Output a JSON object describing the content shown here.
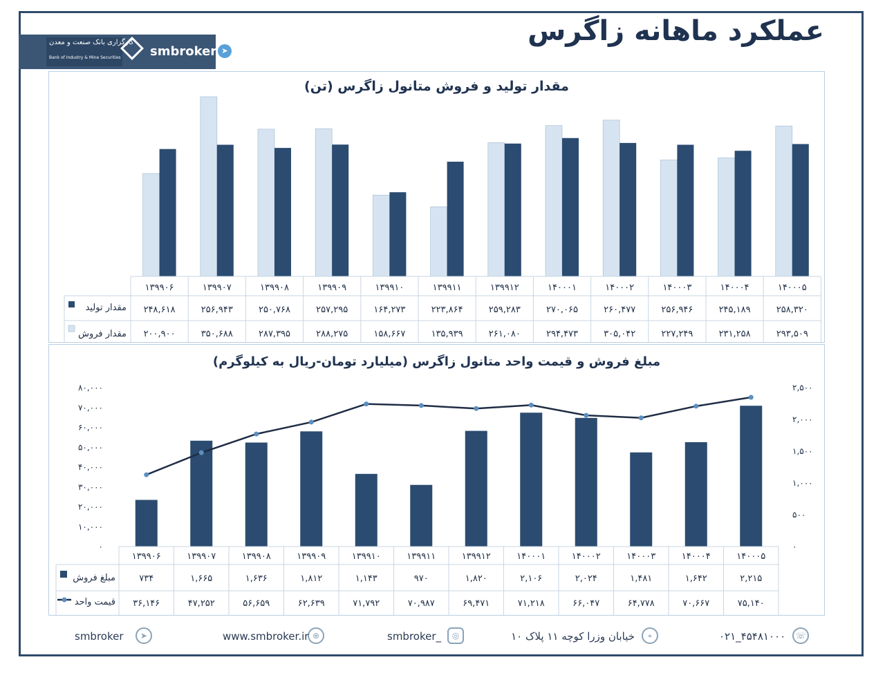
{
  "header": {
    "title": "عملکرد ماهانه زاگرس",
    "brand": "smbroker",
    "bank_name_fa": "کارگزاری بانک صنعت و معدن",
    "bank_name_en": "Bank of Industry & Mine Securities"
  },
  "chart_data": [
    {
      "type": "bar",
      "title": "مقدار تولید و فروش متانول زاگرس (تن)",
      "categories": [
        "۱۳۹۹۰۶",
        "۱۳۹۹۰۷",
        "۱۳۹۹۰۸",
        "۱۳۹۹۰۹",
        "۱۳۹۹۱۰",
        "۱۳۹۹۱۱",
        "۱۳۹۹۱۲",
        "۱۴۰۰۰۱",
        "۱۴۰۰۰۲",
        "۱۴۰۰۰۳",
        "۱۴۰۰۰۴",
        "۱۴۰۰۰۵"
      ],
      "series": [
        {
          "name": "مقدار تولید",
          "color": "#2b4b70",
          "values": [
            248618,
            256943,
            250768,
            257295,
            164273,
            223864,
            259283,
            270065,
            260477,
            256946,
            245189,
            258320
          ],
          "labels": [
            "۲۴۸,۶۱۸",
            "۲۵۶,۹۴۳",
            "۲۵۰,۷۶۸",
            "۲۵۷,۲۹۵",
            "۱۶۴,۲۷۳",
            "۲۲۳,۸۶۴",
            "۲۵۹,۲۸۳",
            "۲۷۰,۰۶۵",
            "۲۶۰,۴۷۷",
            "۲۵۶,۹۴۶",
            "۲۴۵,۱۸۹",
            "۲۵۸,۳۲۰"
          ]
        },
        {
          "name": "مقدار فروش",
          "color": "#d6e4f1",
          "values": [
            200900,
            350688,
            287395,
            288275,
            158667,
            135939,
            261080,
            294473,
            305042,
            227249,
            231258,
            293509
          ],
          "labels": [
            "۲۰۰,۹۰۰",
            "۳۵۰,۶۸۸",
            "۲۸۷,۳۹۵",
            "۲۸۸,۲۷۵",
            "۱۵۸,۶۶۷",
            "۱۳۵,۹۳۹",
            "۲۶۱,۰۸۰",
            "۲۹۴,۴۷۳",
            "۳۰۵,۰۴۲",
            "۲۲۷,۲۴۹",
            "۲۳۱,۲۵۸",
            "۲۹۳,۵۰۹"
          ]
        }
      ],
      "ylim": [
        0,
        350688
      ],
      "grid": false,
      "legend": "data-table"
    },
    {
      "type": "bar",
      "title": "مبلغ فروش و قیمت واحد متانول زاگرس (میلیارد تومان-ریال به کیلوگرم)",
      "categories": [
        "۱۳۹۹۰۶",
        "۱۳۹۹۰۷",
        "۱۳۹۹۰۸",
        "۱۳۹۹۰۹",
        "۱۳۹۹۱۰",
        "۱۳۹۹۱۱",
        "۱۳۹۹۱۲",
        "۱۴۰۰۰۱",
        "۱۴۰۰۰۲",
        "۱۴۰۰۰۳",
        "۱۴۰۰۰۴",
        "۱۴۰۰۰۵"
      ],
      "series": [
        {
          "name": "مبلغ فروش",
          "type": "bar",
          "axis": "right",
          "color": "#2b4b70",
          "values": [
            734,
            1665,
            1636,
            1812,
            1143,
            970,
            1820,
            2106,
            2024,
            1481,
            1642,
            2215
          ],
          "labels": [
            "۷۳۴",
            "۱,۶۶۵",
            "۱,۶۳۶",
            "۱,۸۱۲",
            "۱,۱۴۳",
            "۹۷۰",
            "۱,۸۲۰",
            "۲,۱۰۶",
            "۲,۰۲۴",
            "۱,۴۸۱",
            "۱,۶۴۲",
            "۲,۲۱۵"
          ]
        },
        {
          "name": "قیمت واحد",
          "type": "line",
          "axis": "left",
          "color": "#1f2d44",
          "marker_color": "#5b8fc0",
          "values": [
            36146,
            47252,
            56659,
            62639,
            71792,
            70987,
            69471,
            71218,
            66047,
            64778,
            70667,
            75140
          ],
          "labels": [
            "۳۶,۱۴۶",
            "۴۷,۲۵۲",
            "۵۶,۶۵۹",
            "۶۲,۶۳۹",
            "۷۱,۷۹۲",
            "۷۰,۹۸۷",
            "۶۹,۴۷۱",
            "۷۱,۲۱۸",
            "۶۶,۰۴۷",
            "۶۴,۷۷۸",
            "۷۰,۶۶۷",
            "۷۵,۱۴۰"
          ]
        }
      ],
      "y_left": {
        "ylim": [
          0,
          80000
        ],
        "ticks": [
          "۰",
          "۱۰,۰۰۰",
          "۲۰,۰۰۰",
          "۳۰,۰۰۰",
          "۴۰,۰۰۰",
          "۵۰,۰۰۰",
          "۶۰,۰۰۰",
          "۷۰,۰۰۰",
          "۸۰,۰۰۰"
        ]
      },
      "y_right": {
        "ylim": [
          0,
          2500
        ],
        "ticks": [
          "۰",
          "۵۰۰",
          "۱,۰۰۰",
          "۱,۵۰۰",
          "۲,۰۰۰",
          "۲,۵۰۰"
        ]
      },
      "grid": false,
      "legend": "data-table"
    }
  ],
  "footer": {
    "phone": "۰۲۱_۴۵۴۸۱۰۰۰",
    "address": "خیابان وزرا کوچه ۱۱ پلاک ۱۰",
    "instagram": "smbroker_",
    "website": "www.smbroker.ir",
    "telegram": "smbroker"
  }
}
